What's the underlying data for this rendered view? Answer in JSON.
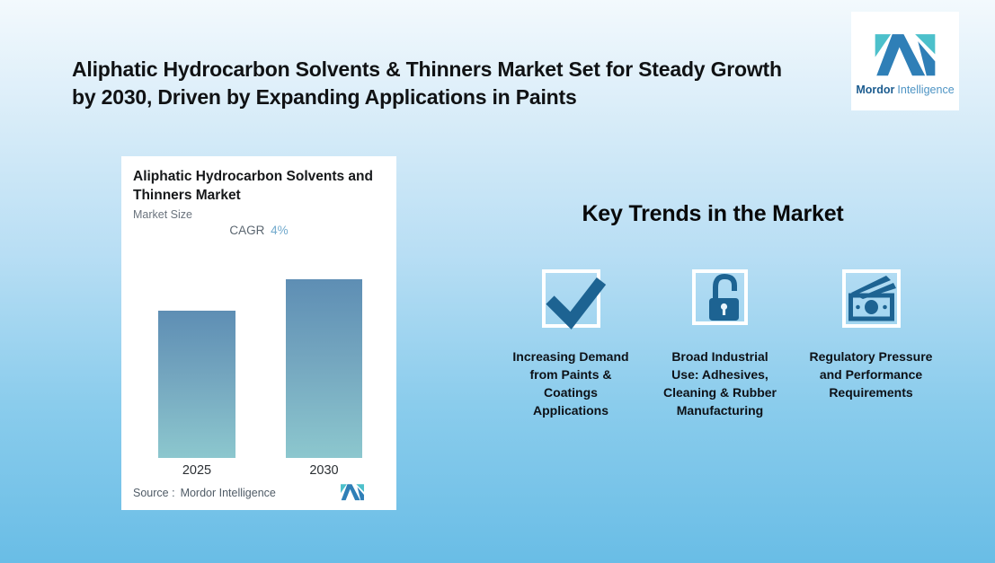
{
  "header": {
    "title": "Aliphatic Hydrocarbon Solvents & Thinners Market Set for Steady Growth by 2030, Driven by Expanding Applications in Paints"
  },
  "brand": {
    "name_primary": "Mordor",
    "name_secondary": "Intelligence"
  },
  "chart_card": {
    "title": "Aliphatic Hydrocarbon Solvents and Thinners Market",
    "subtitle": "Market Size",
    "cagr_label": "CAGR",
    "cagr_value": "4%",
    "source_label": "Source :",
    "source_value": "Mordor Intelligence"
  },
  "chart_data": {
    "type": "bar",
    "title": "Aliphatic Hydrocarbon Solvents and Thinners Market",
    "subtitle": "Market Size",
    "categories": [
      "2025",
      "2030"
    ],
    "values": [
      100,
      121.7
    ],
    "values_note": "relative heights; chart shows no numeric axis; 2030/2025 ratio matches 4% CAGR over 5 years",
    "cagr": "4%",
    "xlabel": "",
    "ylabel": "",
    "gridlines": false,
    "legend": false,
    "bar_gradient_top": "#5e8eb4",
    "bar_gradient_bottom": "#8cc7ce"
  },
  "key_trends": {
    "heading": "Key Trends in the Market",
    "items": [
      {
        "icon": "checkmark-icon",
        "label": "Increasing Demand from Paints & Coatings Applications"
      },
      {
        "icon": "open-padlock-icon",
        "label": "Broad Industrial Use: Adhesives, Cleaning & Rubber Manufacturing"
      },
      {
        "icon": "money-icon",
        "label": "Regulatory Pressure and Performance Requirements"
      }
    ]
  },
  "colors": {
    "background_top": "#f3f9fd",
    "background_bottom": "#69bde6",
    "card_background": "#ffffff",
    "icon_blue": "#1d6392",
    "brand_teal": "#4cc0cb",
    "brand_blue": "#2f7fb7",
    "cagr_value_blue": "#72aacd"
  }
}
